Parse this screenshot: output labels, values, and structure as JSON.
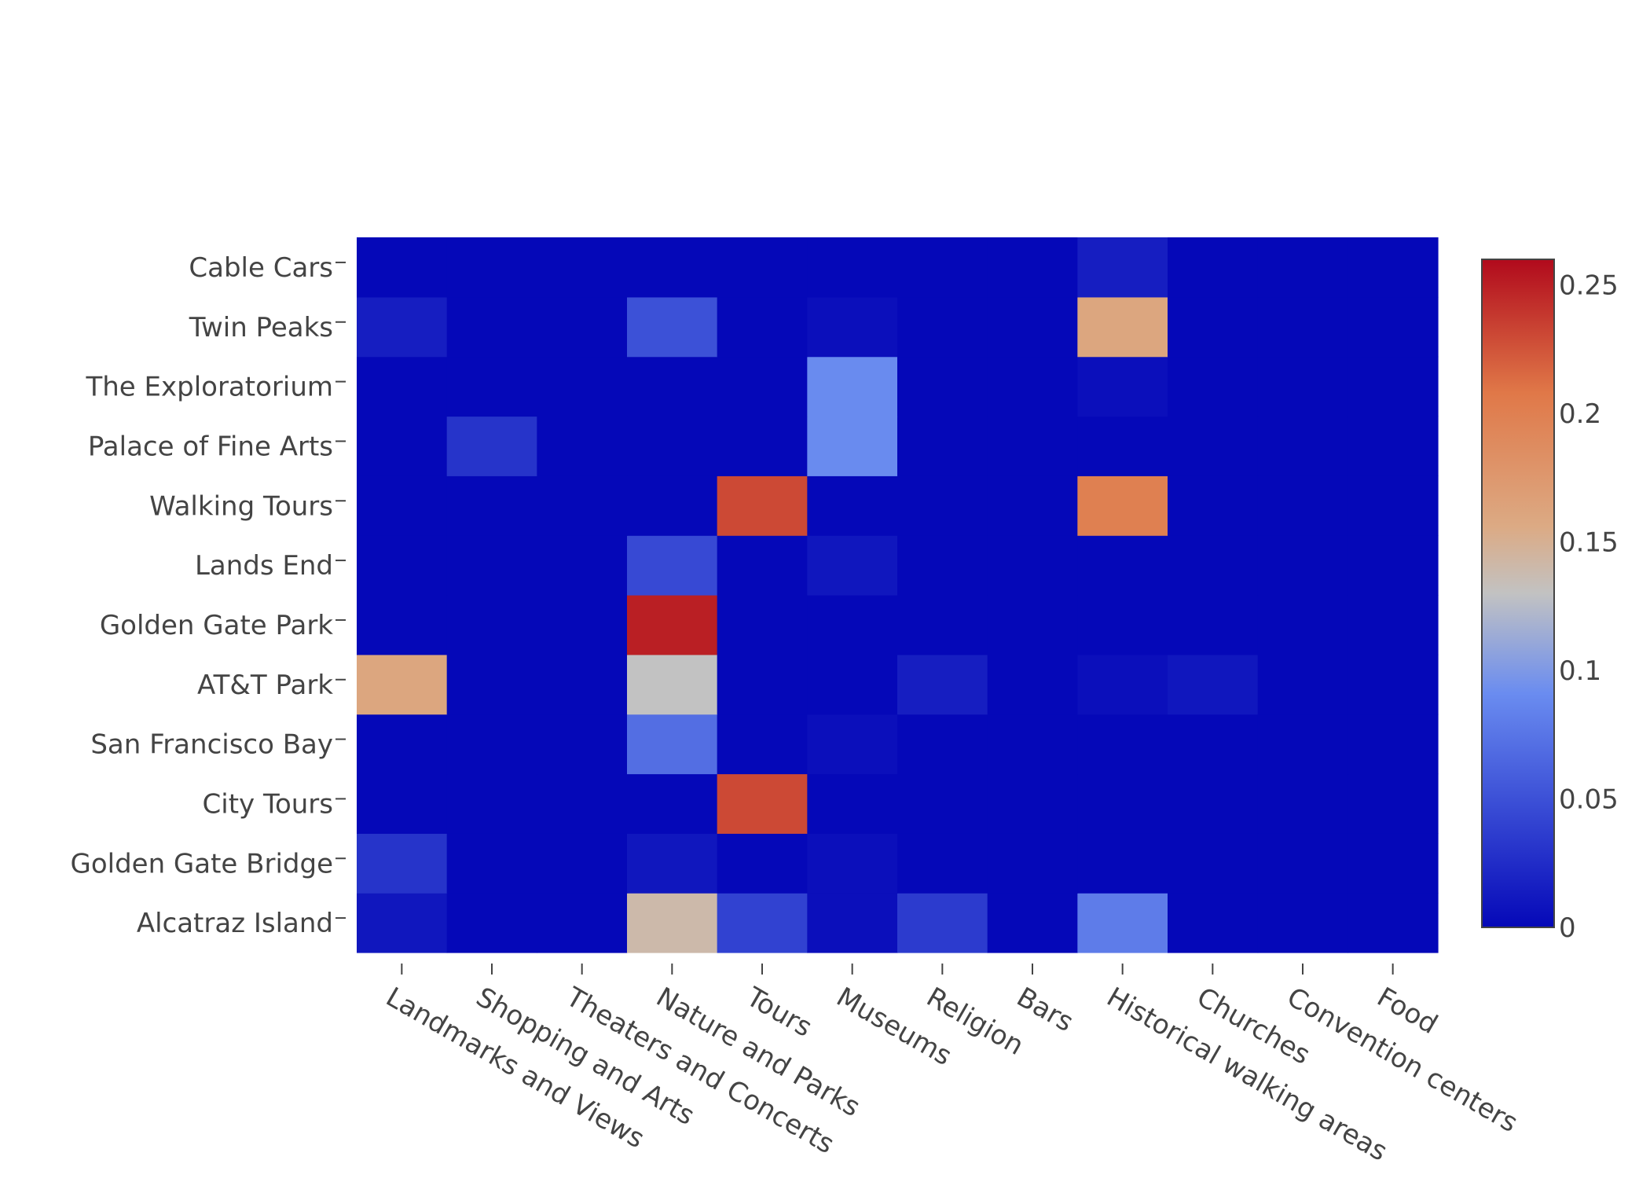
{
  "chart_data": {
    "type": "heatmap",
    "title": "",
    "xlabel": "",
    "ylabel": "",
    "x_categories": [
      "Landmarks and Views",
      "Shopping and Arts",
      "Theaters and Concerts",
      "Nature and Parks",
      "Tours",
      "Museums",
      "Religion",
      "Bars",
      "Historical walking areas",
      "Churches",
      "Convention centers",
      "Food"
    ],
    "y_categories": [
      "Alcatraz Island",
      "Golden Gate Bridge",
      "City Tours",
      "San Francisco Bay",
      "AT&T Park",
      "Golden Gate Park",
      "Lands End",
      "Walking Tours",
      "Palace of Fine Arts",
      "The Exploratorium",
      "Twin Peaks",
      "Cable Cars"
    ],
    "z": [
      [
        0.01,
        0,
        0,
        0.14,
        0.04,
        0.005,
        0.035,
        0,
        0.08,
        0,
        0,
        0
      ],
      [
        0.03,
        0,
        0,
        0.01,
        0,
        0.005,
        0,
        0,
        0,
        0,
        0,
        0
      ],
      [
        0,
        0,
        0,
        0,
        0.23,
        0,
        0,
        0,
        0,
        0,
        0,
        0
      ],
      [
        0,
        0,
        0,
        0.07,
        0,
        0.005,
        0,
        0,
        0,
        0,
        0,
        0
      ],
      [
        0.16,
        0,
        0,
        0.13,
        0,
        0,
        0.015,
        0,
        0.005,
        0.01,
        0,
        0
      ],
      [
        0,
        0,
        0,
        0.25,
        0,
        0,
        0,
        0,
        0,
        0,
        0,
        0
      ],
      [
        0,
        0,
        0,
        0.045,
        0,
        0.01,
        0,
        0,
        0,
        0,
        0,
        0
      ],
      [
        0,
        0,
        0,
        0,
        0.23,
        0,
        0,
        0,
        0.2,
        0,
        0,
        0
      ],
      [
        0,
        0.03,
        0,
        0,
        0,
        0.09,
        0,
        0,
        0,
        0,
        0,
        0
      ],
      [
        0,
        0,
        0,
        0,
        0,
        0.09,
        0,
        0,
        0.005,
        0,
        0,
        0
      ],
      [
        0.015,
        0,
        0,
        0.05,
        0,
        0.005,
        0,
        0,
        0.16,
        0,
        0,
        0
      ],
      [
        0,
        0,
        0,
        0,
        0,
        0,
        0,
        0,
        0.015,
        0,
        0,
        0
      ]
    ],
    "zmin": 0,
    "zmax": 0.26,
    "colorscale": [
      [
        0.0,
        "#0508b8"
      ],
      [
        0.35,
        "#6a8cf0"
      ],
      [
        0.5,
        "#c2c2c2"
      ],
      [
        0.6,
        "#dcaa84"
      ],
      [
        0.8,
        "#e07848"
      ],
      [
        1.0,
        "#b10a1c"
      ]
    ],
    "colorbar": {
      "ticks": [
        0,
        0.05,
        0.1,
        0.15,
        0.2,
        0.25
      ],
      "tick_labels": [
        "0",
        "0.05",
        "0.1",
        "0.15",
        "0.2",
        "0.25"
      ]
    },
    "grid": false,
    "legend": "none",
    "colorbar_placement": "right"
  }
}
